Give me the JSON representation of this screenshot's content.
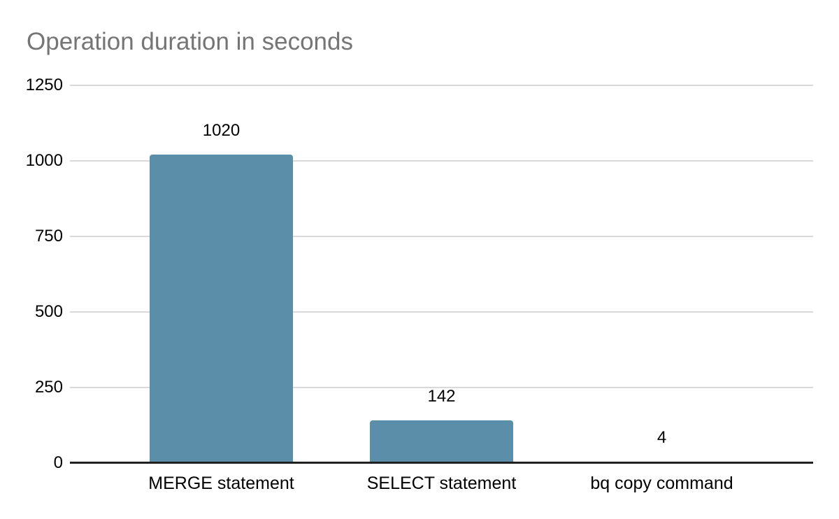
{
  "title": "Operation duration in seconds",
  "chart_data": {
    "type": "bar",
    "title": "Operation duration in seconds",
    "categories": [
      "MERGE statement",
      "SELECT statement",
      "bq copy command"
    ],
    "values": [
      1020,
      142,
      4
    ],
    "data_labels": [
      "1020",
      "142",
      "4"
    ],
    "xlabel": "",
    "ylabel": "",
    "ylim": [
      0,
      1250
    ],
    "yticks": [
      0,
      250,
      500,
      750,
      1000,
      1250
    ],
    "grid": true,
    "legend": false
  },
  "colors": {
    "background": "#ffffff",
    "title_text": "#757575",
    "bar": "#5b8fa9",
    "gridline": "#d9d9d9",
    "axis_line": "#212121",
    "label_text": "#000000"
  }
}
